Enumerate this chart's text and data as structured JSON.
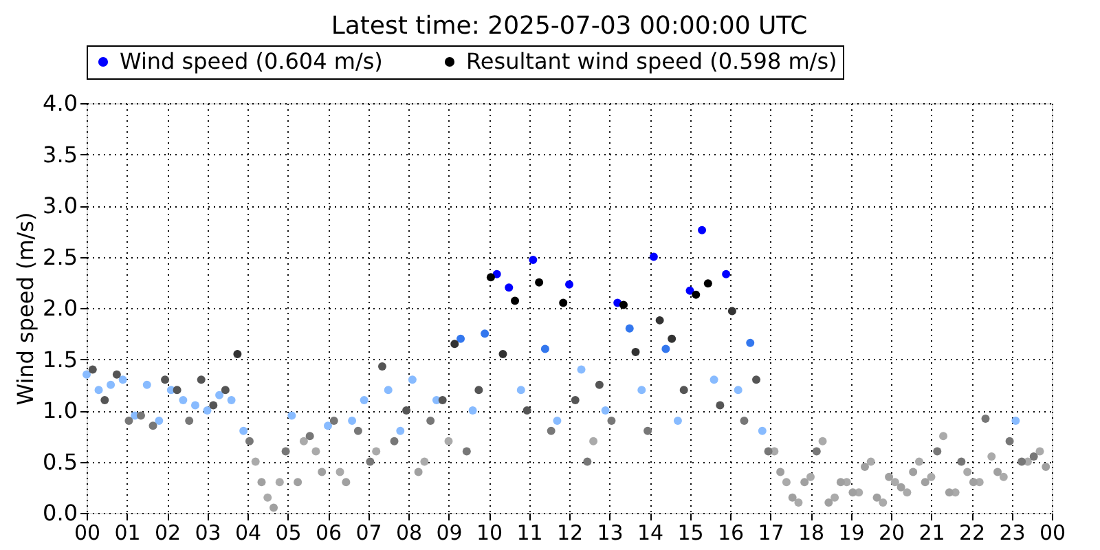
{
  "chart_data": {
    "type": "scatter",
    "title": "Latest time: 2025-07-03 00:00:00 UTC",
    "ylabel": "Wind speed (m/s)",
    "xlim": [
      0,
      24
    ],
    "ylim": [
      0,
      4
    ],
    "xticks": [
      {
        "value": 0,
        "label": "00"
      },
      {
        "value": 1,
        "label": "01"
      },
      {
        "value": 2,
        "label": "02"
      },
      {
        "value": 3,
        "label": "03"
      },
      {
        "value": 4,
        "label": "04"
      },
      {
        "value": 5,
        "label": "05"
      },
      {
        "value": 6,
        "label": "06"
      },
      {
        "value": 7,
        "label": "07"
      },
      {
        "value": 8,
        "label": "08"
      },
      {
        "value": 9,
        "label": "09"
      },
      {
        "value": 10,
        "label": "10"
      },
      {
        "value": 11,
        "label": "11"
      },
      {
        "value": 12,
        "label": "12"
      },
      {
        "value": 13,
        "label": "13"
      },
      {
        "value": 14,
        "label": "14"
      },
      {
        "value": 15,
        "label": "15"
      },
      {
        "value": 16,
        "label": "16"
      },
      {
        "value": 17,
        "label": "17"
      },
      {
        "value": 18,
        "label": "18"
      },
      {
        "value": 19,
        "label": "19"
      },
      {
        "value": 20,
        "label": "20"
      },
      {
        "value": 21,
        "label": "21"
      },
      {
        "value": 22,
        "label": "22"
      },
      {
        "value": 23,
        "label": "23"
      },
      {
        "value": 24,
        "label": "00"
      }
    ],
    "yticks": [
      {
        "value": 0,
        "label": "0.0"
      },
      {
        "value": 0.5,
        "label": "0.5"
      },
      {
        "value": 1,
        "label": "1.0"
      },
      {
        "value": 1.5,
        "label": "1.5"
      },
      {
        "value": 2,
        "label": "2.0"
      },
      {
        "value": 2.5,
        "label": "2.5"
      },
      {
        "value": 3,
        "label": "3.0"
      },
      {
        "value": 3.5,
        "label": "3.5"
      },
      {
        "value": 4,
        "label": "4.0"
      }
    ],
    "grid": true,
    "legend": "top",
    "marker": "circle",
    "series": [
      {
        "name": "Wind speed (0.604 m/s)",
        "color": "#0000ff",
        "x": [
          0.0,
          0.3,
          0.6,
          0.9,
          1.2,
          1.5,
          1.8,
          2.1,
          2.4,
          2.7,
          3.0,
          3.3,
          3.6,
          3.9,
          4.2,
          4.5,
          4.8,
          5.1,
          5.4,
          5.7,
          6.0,
          6.3,
          6.6,
          6.9,
          7.2,
          7.5,
          7.8,
          8.1,
          8.4,
          8.7,
          9.0,
          9.3,
          9.6,
          9.9,
          10.2,
          10.5,
          10.8,
          11.1,
          11.4,
          11.7,
          12.0,
          12.3,
          12.6,
          12.9,
          13.2,
          13.5,
          13.8,
          14.1,
          14.4,
          14.7,
          15.0,
          15.3,
          15.6,
          15.9,
          16.2,
          16.5,
          16.8,
          17.1,
          17.4,
          17.7,
          18.0,
          18.3,
          18.6,
          18.9,
          19.2,
          19.5,
          19.8,
          20.1,
          20.4,
          20.7,
          21.0,
          21.3,
          21.6,
          21.9,
          22.2,
          22.5,
          22.8,
          23.1,
          23.4,
          23.7
        ],
        "values": [
          1.35,
          1.2,
          1.25,
          1.3,
          0.95,
          1.25,
          0.9,
          1.2,
          1.1,
          1.05,
          1.0,
          1.15,
          1.1,
          0.8,
          0.5,
          0.15,
          0.3,
          0.95,
          0.7,
          0.6,
          0.85,
          0.4,
          0.9,
          1.1,
          0.6,
          1.2,
          0.8,
          1.3,
          0.5,
          1.1,
          0.7,
          1.7,
          1.0,
          1.75,
          2.33,
          2.2,
          1.2,
          2.47,
          1.6,
          0.9,
          2.23,
          1.4,
          0.7,
          1.0,
          2.05,
          1.8,
          1.2,
          2.5,
          1.6,
          0.9,
          2.17,
          2.76,
          1.3,
          2.33,
          1.2,
          1.66,
          0.8,
          0.6,
          0.3,
          0.1,
          0.35,
          0.7,
          0.15,
          0.3,
          0.2,
          0.5,
          0.1,
          0.3,
          0.2,
          0.5,
          0.35,
          0.75,
          0.2,
          0.4,
          0.3,
          0.55,
          0.35,
          0.9,
          0.5,
          0.6
        ],
        "colors": [
          "#88bbff",
          "#88bbff",
          "#88bbff",
          "#88bbff",
          "#88bbff",
          "#88bbff",
          "#88bbff",
          "#88bbff",
          "#88bbff",
          "#88bbff",
          "#88bbff",
          "#88bbff",
          "#88bbff",
          "#88bbff",
          "#aaaaaa",
          "#aaaaaa",
          "#aaaaaa",
          "#88bbff",
          "#aaaaaa",
          "#aaaaaa",
          "#88bbff",
          "#aaaaaa",
          "#88bbff",
          "#88bbff",
          "#aaaaaa",
          "#88bbff",
          "#88bbff",
          "#88bbff",
          "#aaaaaa",
          "#88bbff",
          "#aaaaaa",
          "#3377ee",
          "#88bbff",
          "#3377ee",
          "#0000ff",
          "#0000ff",
          "#88bbff",
          "#0000ff",
          "#3377ee",
          "#88bbff",
          "#0000ff",
          "#88bbff",
          "#aaaaaa",
          "#88bbff",
          "#0000ff",
          "#3377ee",
          "#88bbff",
          "#0000ff",
          "#3377ee",
          "#88bbff",
          "#0000ff",
          "#0000ff",
          "#88bbff",
          "#0000ff",
          "#88bbff",
          "#3377ee",
          "#88bbff",
          "#aaaaaa",
          "#aaaaaa",
          "#aaaaaa",
          "#aaaaaa",
          "#aaaaaa",
          "#aaaaaa",
          "#aaaaaa",
          "#aaaaaa",
          "#aaaaaa",
          "#aaaaaa",
          "#aaaaaa",
          "#aaaaaa",
          "#aaaaaa",
          "#aaaaaa",
          "#aaaaaa",
          "#aaaaaa",
          "#aaaaaa",
          "#aaaaaa",
          "#aaaaaa",
          "#aaaaaa",
          "#88bbff",
          "#aaaaaa",
          "#aaaaaa"
        ]
      },
      {
        "name": "Resultant wind speed (0.598 m/s)",
        "color": "#000000",
        "x": [
          0.15,
          0.45,
          0.75,
          1.05,
          1.35,
          1.65,
          1.95,
          2.25,
          2.55,
          2.85,
          3.15,
          3.45,
          3.75,
          4.05,
          4.35,
          4.65,
          4.95,
          5.25,
          5.55,
          5.85,
          6.15,
          6.45,
          6.75,
          7.05,
          7.35,
          7.65,
          7.95,
          8.25,
          8.55,
          8.85,
          9.15,
          9.45,
          9.75,
          10.05,
          10.35,
          10.65,
          10.95,
          11.25,
          11.55,
          11.85,
          12.15,
          12.45,
          12.75,
          13.05,
          13.35,
          13.65,
          13.95,
          14.25,
          14.55,
          14.85,
          15.15,
          15.45,
          15.75,
          16.05,
          16.35,
          16.65,
          16.95,
          17.25,
          17.55,
          17.85,
          18.15,
          18.45,
          18.75,
          19.05,
          19.35,
          19.65,
          19.95,
          20.25,
          20.55,
          20.85,
          21.15,
          21.45,
          21.75,
          22.05,
          22.35,
          22.65,
          22.95,
          23.25,
          23.55,
          23.85
        ],
        "values": [
          1.4,
          1.1,
          1.35,
          0.9,
          0.95,
          0.85,
          1.3,
          1.2,
          0.9,
          1.3,
          1.05,
          1.2,
          1.55,
          0.7,
          0.3,
          0.05,
          0.6,
          0.3,
          0.75,
          0.4,
          0.9,
          0.3,
          0.8,
          0.5,
          1.43,
          0.7,
          1.0,
          0.4,
          0.9,
          1.1,
          1.65,
          0.6,
          1.2,
          2.3,
          1.55,
          2.07,
          1.0,
          2.25,
          0.8,
          2.05,
          1.1,
          0.5,
          1.25,
          0.9,
          2.03,
          1.57,
          0.8,
          1.88,
          1.7,
          1.2,
          2.13,
          2.24,
          1.05,
          1.97,
          0.9,
          1.3,
          0.6,
          0.4,
          0.15,
          0.3,
          0.6,
          0.1,
          0.3,
          0.2,
          0.45,
          0.15,
          0.35,
          0.25,
          0.4,
          0.3,
          0.6,
          0.2,
          0.5,
          0.3,
          0.92,
          0.4,
          0.7,
          0.5,
          0.55,
          0.45
        ],
        "colors": [
          "#555555",
          "#555555",
          "#555555",
          "#777777",
          "#777777",
          "#777777",
          "#555555",
          "#555555",
          "#777777",
          "#555555",
          "#555555",
          "#555555",
          "#333333",
          "#777777",
          "#a0a0a0",
          "#a0a0a0",
          "#777777",
          "#a0a0a0",
          "#777777",
          "#a0a0a0",
          "#777777",
          "#a0a0a0",
          "#777777",
          "#777777",
          "#555555",
          "#777777",
          "#555555",
          "#a0a0a0",
          "#777777",
          "#555555",
          "#333333",
          "#777777",
          "#555555",
          "#000000",
          "#333333",
          "#000000",
          "#555555",
          "#000000",
          "#777777",
          "#000000",
          "#555555",
          "#777777",
          "#555555",
          "#777777",
          "#000000",
          "#333333",
          "#777777",
          "#333333",
          "#333333",
          "#555555",
          "#000000",
          "#000000",
          "#555555",
          "#333333",
          "#777777",
          "#555555",
          "#777777",
          "#a0a0a0",
          "#a0a0a0",
          "#a0a0a0",
          "#777777",
          "#a0a0a0",
          "#a0a0a0",
          "#a0a0a0",
          "#a0a0a0",
          "#a0a0a0",
          "#a0a0a0",
          "#a0a0a0",
          "#a0a0a0",
          "#a0a0a0",
          "#777777",
          "#a0a0a0",
          "#777777",
          "#a0a0a0",
          "#777777",
          "#a0a0a0",
          "#777777",
          "#777777",
          "#777777",
          "#a0a0a0"
        ]
      }
    ]
  }
}
